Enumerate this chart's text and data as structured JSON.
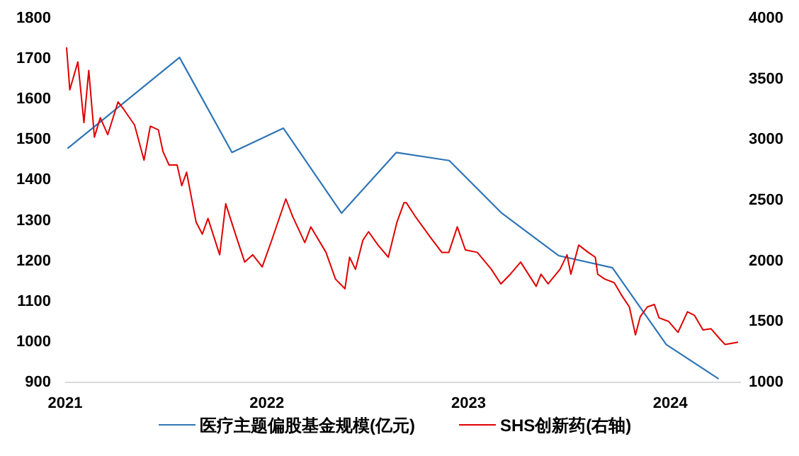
{
  "chart_data": {
    "type": "line",
    "legend": "bottom",
    "xlim": [
      2021,
      2024.35
    ],
    "xticks": [
      2021,
      2022,
      2023,
      2024
    ],
    "ylim": [
      900,
      1800
    ],
    "yticks": [
      900,
      1000,
      1100,
      1200,
      1300,
      1400,
      1500,
      1600,
      1700,
      1800
    ],
    "y2lim": [
      1000,
      4000
    ],
    "y2ticks": [
      1000,
      1500,
      2000,
      2500,
      3000,
      3500,
      4000
    ],
    "series": [
      {
        "name": "医疗主题偏股基金规模(亿元)",
        "color": "#2e75b6",
        "x": [
          2021.012,
          2021.567,
          2021.827,
          2022.082,
          2022.37,
          2022.642,
          2022.904,
          2023.164,
          2023.446,
          2023.713,
          2023.98,
          2024.24
        ],
        "values": [
          1475,
          1700,
          1465,
          1525,
          1315,
          1465,
          1445,
          1315,
          1210,
          1180,
          990,
          905
        ]
      },
      {
        "name": "SHS创新药(右轴)",
        "color": "#e00000",
        "axis": "y2",
        "x": [
          2021.007,
          2021.023,
          2021.063,
          2021.093,
          2021.117,
          2021.145,
          2021.174,
          2021.211,
          2021.262,
          2021.29,
          2021.344,
          2021.391,
          2021.422,
          2021.462,
          2021.485,
          2021.515,
          2021.555,
          2021.578,
          2021.602,
          2021.649,
          2021.68,
          2021.708,
          2021.766,
          2021.796,
          2021.848,
          2021.89,
          2021.93,
          2021.977,
          2022.024,
          2022.094,
          2022.129,
          2022.188,
          2022.218,
          2022.293,
          2022.34,
          2022.387,
          2022.41,
          2022.439,
          2022.476,
          2022.504,
          2022.551,
          2022.602,
          2022.645,
          2022.68,
          2022.691,
          2022.738,
          2022.808,
          2022.867,
          2022.902,
          2022.944,
          2022.984,
          2023.043,
          2023.113,
          2023.16,
          2023.207,
          2023.258,
          2023.335,
          2023.359,
          2023.394,
          2023.453,
          2023.488,
          2023.507,
          2023.546,
          2023.593,
          2023.628,
          2023.64,
          2023.675,
          2023.722,
          2023.757,
          2023.797,
          2023.827,
          2023.851,
          2023.886,
          2023.921,
          2023.944,
          2023.992,
          2024.038,
          2024.085,
          2024.12,
          2024.162,
          2024.202,
          2024.249,
          2024.272,
          2024.336
        ],
        "values": [
          3750,
          3400,
          3630,
          3130,
          3560,
          3010,
          3170,
          3030,
          3300,
          3240,
          3110,
          2820,
          3100,
          3070,
          2890,
          2780,
          2780,
          2610,
          2720,
          2310,
          2210,
          2340,
          2040,
          2460,
          2190,
          1980,
          2040,
          1940,
          2160,
          2500,
          2350,
          2140,
          2270,
          2060,
          1840,
          1760,
          2020,
          1920,
          2160,
          2230,
          2120,
          2020,
          2310,
          2470,
          2470,
          2350,
          2190,
          2060,
          2060,
          2270,
          2080,
          2060,
          1920,
          1800,
          1880,
          1980,
          1780,
          1880,
          1800,
          1920,
          2040,
          1880,
          2120,
          2060,
          2020,
          1880,
          1840,
          1810,
          1710,
          1610,
          1380,
          1530,
          1610,
          1630,
          1520,
          1490,
          1400,
          1570,
          1540,
          1420,
          1430,
          1340,
          1300,
          1320
        ]
      }
    ]
  }
}
